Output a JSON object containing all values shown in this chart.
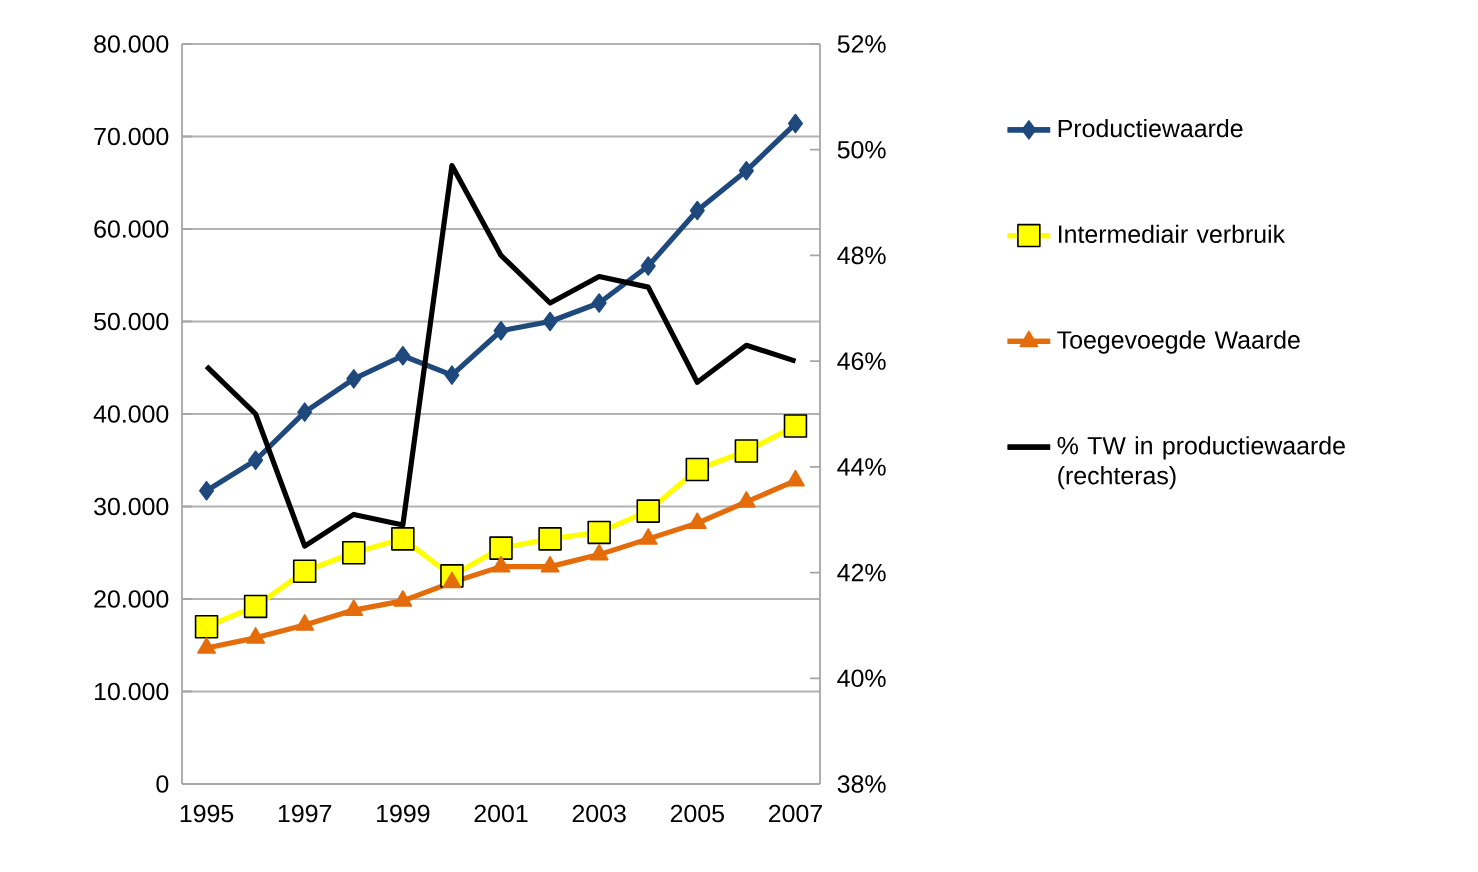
{
  "chart_data": {
    "type": "line",
    "categories": [
      "1995",
      null,
      "1997",
      null,
      "1999",
      null,
      "2001",
      null,
      "2003",
      null,
      "2005",
      null,
      "2007"
    ],
    "series": [
      {
        "name": "Productiewaarde",
        "color": "#1f497d",
        "marker": "diamond",
        "values": [
          31700,
          35000,
          40200,
          43800,
          46300,
          44200,
          49000,
          50000,
          52000,
          56000,
          62000,
          66300,
          71400
        ]
      },
      {
        "name": "Intermediair verbruik",
        "color": "#ffff00",
        "marker": "square",
        "values": [
          17000,
          19200,
          23000,
          25000,
          26500,
          22500,
          25500,
          26500,
          27200,
          29500,
          34000,
          36000,
          38700
        ]
      },
      {
        "name": "Toegevoegde Waarde",
        "color": "#e46c0a",
        "marker": "triangle",
        "values": [
          14700,
          15800,
          17200,
          18800,
          19800,
          21800,
          23500,
          23500,
          24800,
          26500,
          28200,
          30500,
          32800
        ]
      },
      {
        "name": "% TW in productiewaarde (rechteras)",
        "color": "#000000",
        "marker": "none",
        "axis": "y2",
        "values": [
          45.9,
          45.0,
          42.5,
          43.1,
          42.9,
          49.7,
          48.0,
          47.1,
          47.6,
          47.4,
          45.6,
          46.3,
          46.0
        ]
      }
    ],
    "ylim": [
      0,
      80000
    ],
    "yticks": [
      {
        "value": 0,
        "label": "0"
      },
      {
        "value": 10000,
        "label": "10.000"
      },
      {
        "value": 20000,
        "label": "20.000"
      },
      {
        "value": 30000,
        "label": "30.000"
      },
      {
        "value": 40000,
        "label": "40.000"
      },
      {
        "value": 50000,
        "label": "50.000"
      },
      {
        "value": 60000,
        "label": "60.000"
      },
      {
        "value": 70000,
        "label": "70.000"
      },
      {
        "value": 80000,
        "label": "80.000"
      }
    ],
    "y2lim": [
      38,
      52
    ],
    "y2ticks": [
      {
        "value": 38,
        "label": "38%"
      },
      {
        "value": 40,
        "label": "40%"
      },
      {
        "value": 42,
        "label": "42%"
      },
      {
        "value": 44,
        "label": "44%"
      },
      {
        "value": 46,
        "label": "46%"
      },
      {
        "value": 48,
        "label": "48%"
      },
      {
        "value": 50,
        "label": "50%"
      },
      {
        "value": 52,
        "label": "52%"
      }
    ],
    "grid": "y",
    "legend": "right"
  }
}
